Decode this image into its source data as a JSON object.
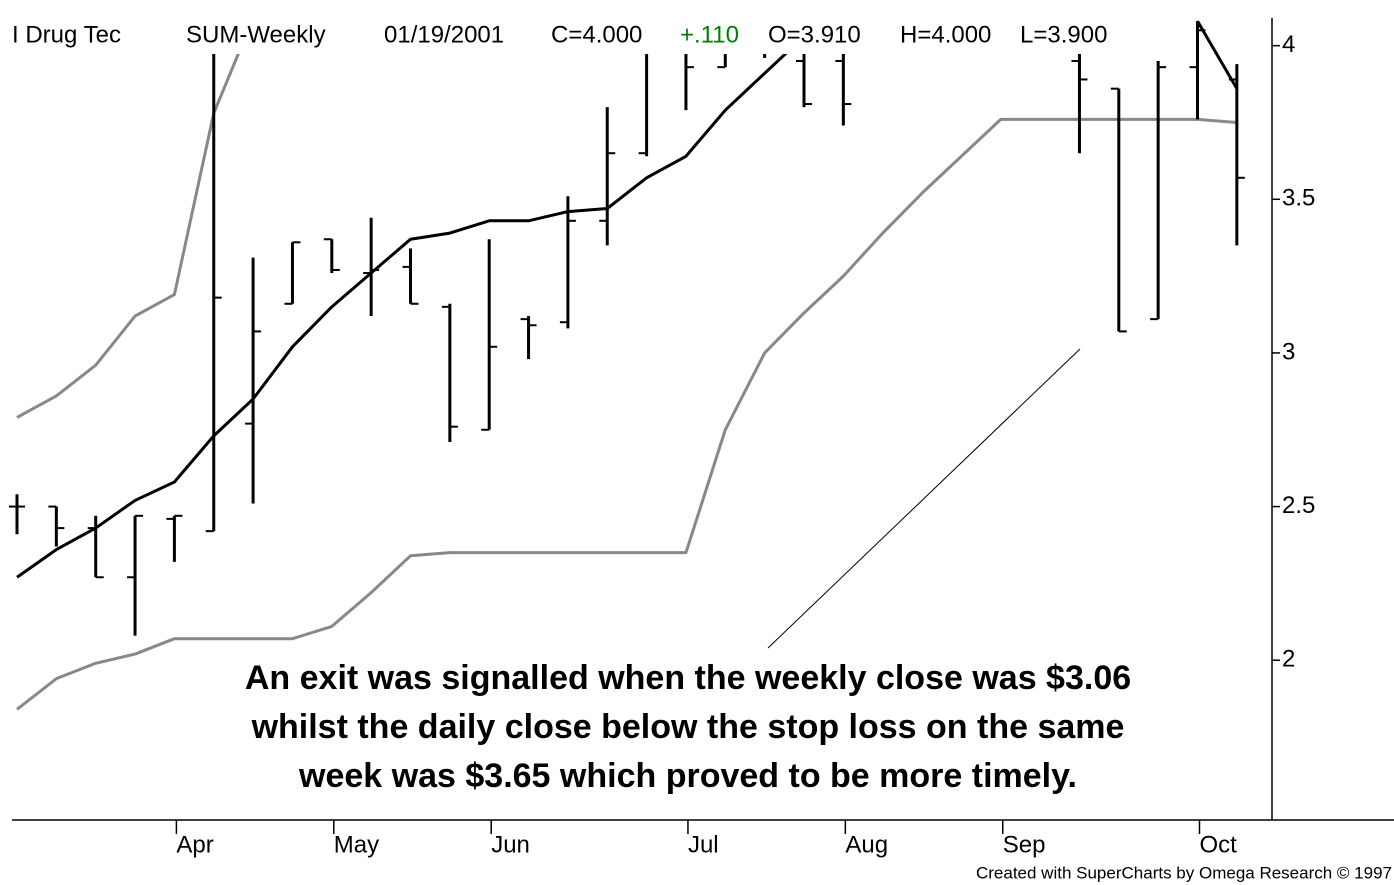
{
  "chart_data": {
    "type": "ohlc",
    "title_parts": [
      "I Drug Tec",
      "SUM-Weekly",
      "01/19/2001",
      "C=4.000",
      "+.110",
      "O=3.910",
      "H=4.000",
      "L=3.900"
    ],
    "annotation": [
      "An exit was signalled when the weekly close was $3.06",
      "whilst the daily close below the stop loss on the same",
      "week was $3.65 which proved to be more timely."
    ],
    "footer": "Created with SuperCharts by Omega Research © 1997",
    "categories": [
      null,
      null,
      null,
      null,
      "Apr",
      null,
      null,
      null,
      "May",
      null,
      null,
      null,
      "Jun",
      null,
      null,
      null,
      null,
      "Jul",
      null,
      null,
      null,
      "Aug",
      null,
      null,
      null,
      "Sep",
      null,
      null,
      null,
      null,
      "Oct",
      null
    ],
    "open": [
      2.5,
      2.5,
      2.43,
      2.27,
      2.46,
      2.42,
      2.77,
      3.16,
      3.37,
      3.26,
      3.28,
      3.15,
      2.75,
      3.11,
      3.1,
      3.43,
      3.65,
      4.02,
      3.93,
      4.05,
      3.95,
      3.95,
      null,
      null,
      null,
      null,
      null,
      3.95,
      3.86,
      3.11,
      3.93,
      3.89
    ],
    "high": [
      2.54,
      2.5,
      2.47,
      2.47,
      2.47,
      4.08,
      3.31,
      3.36,
      3.37,
      3.44,
      3.34,
      3.16,
      3.37,
      3.12,
      3.51,
      3.8,
      4.08,
      4.08,
      4.08,
      4.08,
      4.03,
      4.01,
      null,
      null,
      null,
      null,
      null,
      4.08,
      3.86,
      3.95,
      4.08,
      3.94
    ],
    "low": [
      2.41,
      2.37,
      2.27,
      2.08,
      2.32,
      2.42,
      2.51,
      3.16,
      3.26,
      3.12,
      3.16,
      2.71,
      2.75,
      2.98,
      3.08,
      3.35,
      3.64,
      3.79,
      3.93,
      3.96,
      3.8,
      3.74,
      null,
      null,
      null,
      null,
      null,
      3.65,
      3.07,
      3.11,
      3.76,
      3.35
    ],
    "close": [
      2.5,
      2.43,
      2.27,
      2.47,
      2.47,
      3.18,
      3.07,
      3.36,
      3.27,
      3.27,
      3.16,
      2.76,
      3.02,
      3.09,
      3.43,
      3.65,
      4.02,
      3.93,
      4.04,
      4.02,
      3.81,
      3.81,
      null,
      null,
      null,
      null,
      null,
      3.89,
      3.07,
      3.93,
      4.05,
      3.57
    ],
    "bar_color": "#000000",
    "lines": [
      {
        "color": "#000000",
        "width": 3,
        "values": [
          2.27,
          2.36,
          2.43,
          2.52,
          2.58,
          2.73,
          2.85,
          3.02,
          3.15,
          3.26,
          3.37,
          3.39,
          3.43,
          3.43,
          3.46,
          3.47,
          3.57,
          3.64,
          3.79,
          3.91,
          4.03,
          null,
          null,
          null,
          null,
          null,
          null,
          null,
          null,
          null,
          4.08,
          3.86
        ]
      },
      {
        "color": "#888888",
        "width": 3,
        "values": [
          2.79,
          2.86,
          2.96,
          3.12,
          3.19,
          3.78,
          4.09,
          null,
          null,
          null,
          null,
          null,
          null,
          null,
          null,
          null,
          null,
          null,
          null,
          null,
          null,
          null,
          null,
          null,
          null,
          null,
          null,
          null,
          null,
          null,
          null,
          null
        ]
      },
      {
        "color": "#888888",
        "width": 3,
        "values": [
          1.84,
          1.94,
          1.99,
          2.02,
          2.07,
          2.07,
          2.07,
          2.07,
          2.11,
          2.22,
          2.34,
          2.35,
          2.35,
          2.35,
          2.35,
          2.35,
          2.35,
          2.35,
          2.75,
          3.0,
          3.13,
          3.25,
          3.39,
          3.52,
          3.64,
          3.76,
          3.76,
          3.76,
          3.76,
          3.76,
          3.76,
          3.75
        ]
      }
    ],
    "ylim": [
      1.48,
      4.09
    ],
    "yticks": [
      2,
      2.5,
      3,
      3.5,
      4
    ]
  }
}
